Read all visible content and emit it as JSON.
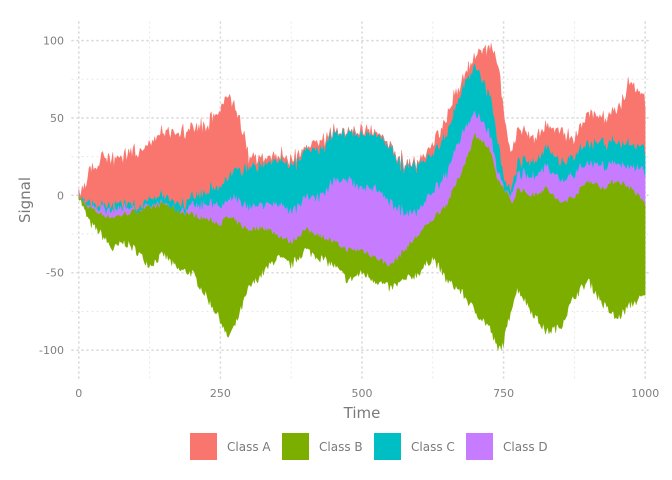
{
  "chart_data": {
    "type": "area",
    "stacked": true,
    "xlabel": "Time",
    "ylabel": "Signal",
    "xlim": [
      -12,
      1012
    ],
    "ylim": [
      -118,
      112
    ],
    "x_ticks": [
      0,
      250,
      500,
      750,
      1000
    ],
    "y_ticks": [
      -100,
      -50,
      0,
      50,
      100
    ],
    "grid": true,
    "legend_position": "bottom",
    "x": [
      0,
      10,
      20,
      40,
      60,
      80,
      100,
      125,
      150,
      175,
      200,
      225,
      250,
      262,
      275,
      290,
      300,
      325,
      350,
      375,
      400,
      425,
      450,
      475,
      500,
      525,
      550,
      575,
      600,
      625,
      650,
      675,
      700,
      725,
      740,
      750,
      765,
      775,
      800,
      825,
      850,
      875,
      900,
      925,
      950,
      975,
      1000
    ],
    "series": [
      {
        "name": "Class B",
        "color": "#7CAE00",
        "lower": [
          0,
          -10,
          -18,
          -25,
          -35,
          -30,
          -35,
          -45,
          -38,
          -48,
          -50,
          -65,
          -80,
          -92,
          -85,
          -70,
          -60,
          -50,
          -40,
          -45,
          -35,
          -40,
          -45,
          -55,
          -50,
          -55,
          -60,
          -55,
          -50,
          -40,
          -55,
          -62,
          -75,
          -85,
          -100,
          -95,
          -70,
          -60,
          -75,
          -88,
          -85,
          -65,
          -55,
          -70,
          -80,
          -70,
          -65
        ],
        "upper": [
          0,
          -5,
          -8,
          -12,
          -14,
          -12,
          -10,
          -8,
          -5,
          -10,
          -12,
          -15,
          -18,
          -14,
          -16,
          -20,
          -22,
          -20,
          -25,
          -30,
          -22,
          -25,
          -30,
          -35,
          -35,
          -40,
          -45,
          -35,
          -25,
          -15,
          -5,
          15,
          40,
          30,
          10,
          5,
          -5,
          5,
          0,
          5,
          -5,
          0,
          10,
          5,
          10,
          5,
          -5
        ]
      },
      {
        "name": "Class D",
        "values": [
          0,
          0,
          0,
          5,
          5,
          5,
          0,
          0,
          0,
          0,
          5,
          10,
          12,
          10,
          15,
          15,
          15,
          15,
          20,
          20,
          20,
          25,
          40,
          45,
          40,
          45,
          40,
          25,
          15,
          18,
          20,
          25,
          15,
          10,
          5,
          0,
          5,
          10,
          12,
          15,
          15,
          15,
          12,
          15,
          10,
          15,
          20
        ]
      },
      {
        "name": "Class C",
        "values": [
          0,
          2,
          3,
          2,
          3,
          2,
          3,
          4,
          5,
          4,
          5,
          8,
          12,
          14,
          18,
          22,
          25,
          25,
          28,
          30,
          30,
          30,
          30,
          30,
          35,
          35,
          35,
          30,
          30,
          25,
          25,
          28,
          30,
          25,
          20,
          5,
          5,
          8,
          10,
          12,
          12,
          12,
          12,
          15,
          15,
          15,
          15
        ]
      },
      {
        "name": "Class A",
        "color": "#F8766D",
        "values": [
          0,
          8,
          20,
          30,
          30,
          30,
          35,
          35,
          40,
          45,
          45,
          40,
          50,
          55,
          40,
          25,
          5,
          5,
          2,
          3,
          2,
          5,
          0,
          0,
          2,
          2,
          0,
          0,
          0,
          5,
          10,
          5,
          5,
          30,
          50,
          40,
          20,
          20,
          15,
          12,
          20,
          10,
          20,
          15,
          20,
          40,
          30
        ]
      }
    ],
    "legend": [
      {
        "name": "Class A",
        "color": "#F8766D"
      },
      {
        "name": "Class B",
        "color": "#7CAE00"
      },
      {
        "name": "Class C",
        "color": "#00BFC4"
      },
      {
        "name": "Class D",
        "color": "#C77CFF"
      }
    ]
  }
}
